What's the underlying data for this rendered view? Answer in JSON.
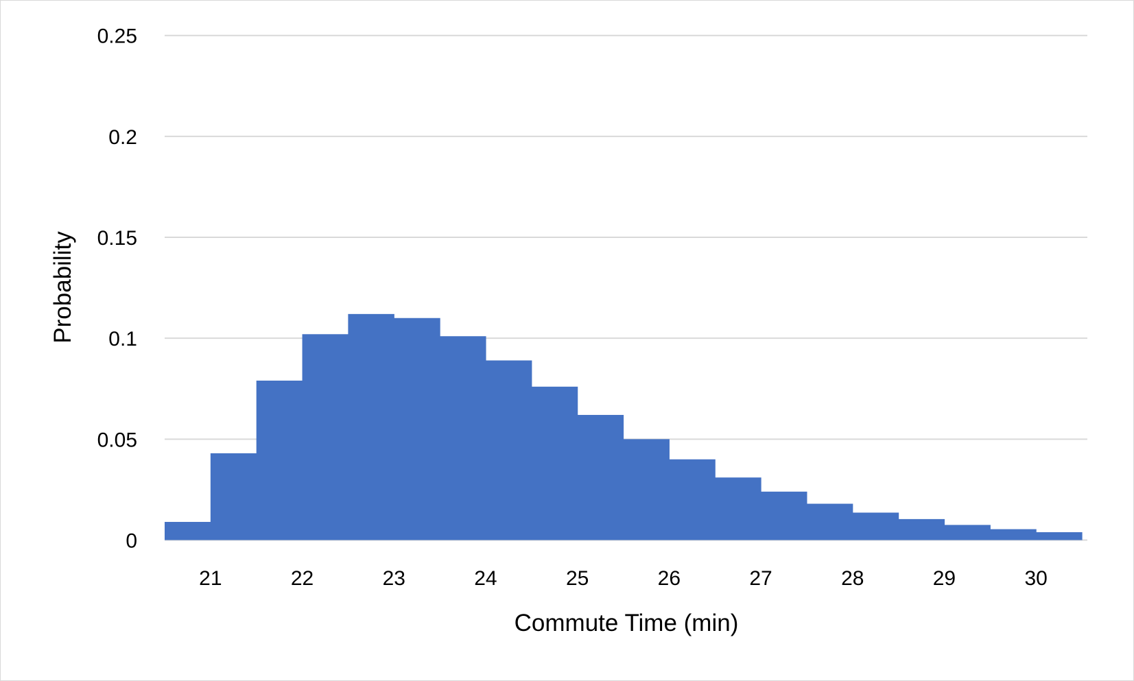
{
  "chart_data": {
    "type": "bar",
    "title": "",
    "xlabel": "Commute Time (min)",
    "ylabel": "Probability",
    "ylim": [
      0,
      0.25
    ],
    "xlim": [
      20.5,
      30.5
    ],
    "y_ticks": [
      "0",
      "0.05",
      "0.1",
      "0.15",
      "0.2",
      "0.25"
    ],
    "x_ticks": [
      "21",
      "22",
      "23",
      "24",
      "25",
      "26",
      "27",
      "28",
      "29",
      "30"
    ],
    "grid": true,
    "legend": "none",
    "bar_color": "#4472C4",
    "bin_width": 0.5,
    "bin_starts": [
      20.5,
      21.0,
      21.5,
      22.0,
      22.5,
      23.0,
      23.5,
      24.0,
      24.5,
      25.0,
      25.5,
      26.0,
      26.5,
      27.0,
      27.5,
      28.0,
      28.5,
      29.0,
      29.5,
      30.0
    ],
    "values": [
      0.009,
      0.043,
      0.079,
      0.102,
      0.112,
      0.11,
      0.101,
      0.089,
      0.076,
      0.062,
      0.05,
      0.04,
      0.031,
      0.024,
      0.018,
      0.0136,
      0.0104,
      0.0075,
      0.0054,
      0.0039
    ]
  }
}
